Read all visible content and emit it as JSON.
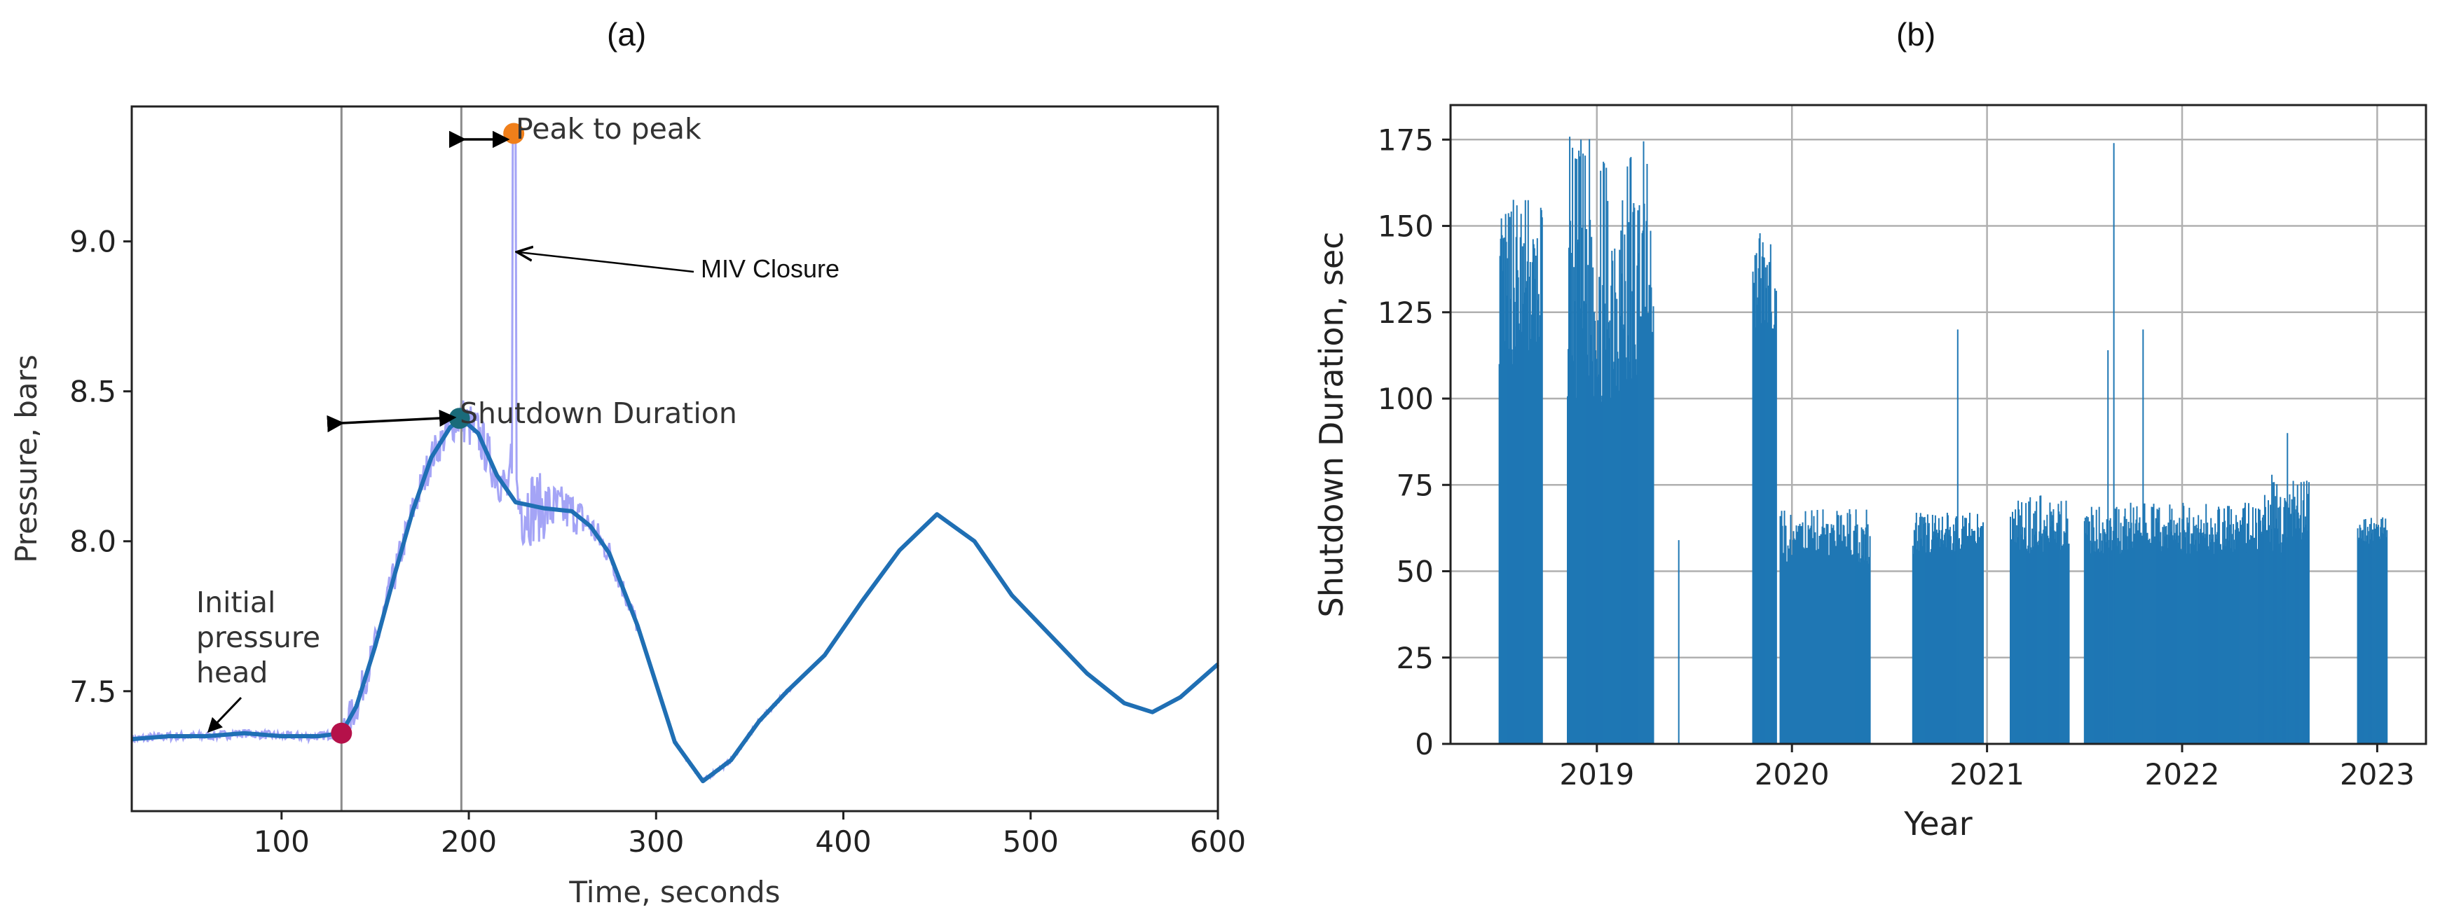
{
  "panel_labels": {
    "a": "(a)",
    "b": "(b)"
  },
  "chart_data": [
    {
      "type": "line",
      "panel": "(a)",
      "xlabel": "Time, seconds",
      "ylabel": "Pressure, bars",
      "xlim": [
        20,
        600
      ],
      "ylim": [
        7.1,
        9.45
      ],
      "xticks": [
        100,
        200,
        300,
        400,
        500,
        600
      ],
      "yticks": [
        7.5,
        8.0,
        8.5,
        9.0
      ],
      "grid": false,
      "colors": {
        "raw": "#9a9af5",
        "smooth": "#1f6fb4",
        "vline": "#8c8c8c",
        "peak": "#f07f1a",
        "start": "#b5114a",
        "top": "#1a6b7a"
      },
      "vertical_lines_x": [
        132,
        196
      ],
      "series": [
        {
          "x": [
            20,
            40,
            60,
            80,
            100,
            120,
            132,
            140,
            150,
            160,
            170,
            180,
            190,
            196,
            205,
            215,
            225,
            240,
            255,
            265,
            275,
            290,
            310,
            325,
            340,
            355,
            370,
            390,
            410,
            430,
            450,
            470,
            490,
            510,
            530,
            550,
            565,
            580,
            600
          ],
          "y": [
            7.34,
            7.35,
            7.35,
            7.36,
            7.35,
            7.35,
            7.36,
            7.45,
            7.65,
            7.88,
            8.1,
            8.28,
            8.38,
            8.41,
            8.36,
            8.22,
            8.13,
            8.11,
            8.1,
            8.05,
            7.96,
            7.72,
            7.33,
            7.2,
            7.27,
            7.4,
            7.5,
            7.62,
            7.8,
            7.97,
            8.09,
            8.0,
            7.82,
            7.69,
            7.56,
            7.46,
            7.43,
            7.48,
            7.59
          ]
        }
      ],
      "markers": [
        {
          "name": "Initial pressure head point",
          "x": 132,
          "y": 7.36
        },
        {
          "name": "Shutdown Duration end point",
          "x": 195,
          "y": 8.41
        },
        {
          "name": "Peak",
          "x": 224,
          "y": 9.36
        }
      ],
      "annotations": {
        "peak_to_peak": "Peak to peak",
        "miv_closure": "MIV Closure",
        "shutdown_duration": "Shutdown Duration",
        "initial_line1": "Initial",
        "initial_line2": "pressure",
        "initial_line3": "head"
      }
    },
    {
      "type": "bar",
      "panel": "(b)",
      "xlabel": "Year",
      "ylabel": "Shutdown Duration, sec",
      "xlim": [
        2018.25,
        2023.25
      ],
      "ylim": [
        0,
        185
      ],
      "xticks": [
        2019,
        2020,
        2021,
        2022,
        2023
      ],
      "yticks": [
        0,
        25,
        50,
        75,
        100,
        125,
        150,
        175
      ],
      "grid": true,
      "color": "#1f77b4",
      "clusters": [
        {
          "from": 2018.5,
          "to": 2018.72,
          "min": 110,
          "max": 159
        },
        {
          "from": 2018.85,
          "to": 2019.29,
          "min": 98,
          "max": 176
        },
        {
          "from": 2019.42,
          "to": 2019.42,
          "min": 59,
          "max": 59
        },
        {
          "from": 2019.8,
          "to": 2019.92,
          "min": 120,
          "max": 149
        },
        {
          "from": 2019.94,
          "to": 2020.4,
          "min": 52,
          "max": 68
        },
        {
          "from": 2020.62,
          "to": 2020.98,
          "min": 55,
          "max": 67
        },
        {
          "from": 2020.85,
          "to": 2020.85,
          "min": 120,
          "max": 120
        },
        {
          "from": 2021.12,
          "to": 2021.42,
          "min": 55,
          "max": 72
        },
        {
          "from": 2021.5,
          "to": 2022.42,
          "min": 55,
          "max": 70
        },
        {
          "from": 2021.65,
          "to": 2021.65,
          "min": 174,
          "max": 174
        },
        {
          "from": 2021.62,
          "to": 2021.62,
          "min": 114,
          "max": 114
        },
        {
          "from": 2021.8,
          "to": 2021.8,
          "min": 120,
          "max": 120
        },
        {
          "from": 2022.42,
          "to": 2022.65,
          "min": 55,
          "max": 78
        },
        {
          "from": 2022.54,
          "to": 2022.54,
          "min": 90,
          "max": 90
        },
        {
          "from": 2022.9,
          "to": 2023.05,
          "min": 58,
          "max": 66
        }
      ]
    }
  ]
}
